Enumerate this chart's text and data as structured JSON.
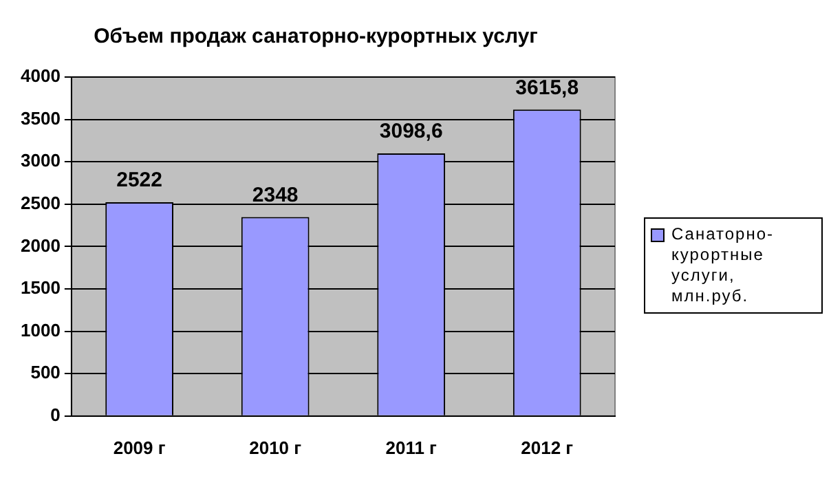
{
  "chart_data": {
    "type": "bar",
    "title": "Объем продаж санаторно-курортных услуг",
    "categories": [
      "2009 г",
      "2010 г",
      "2011 г",
      "2012 г"
    ],
    "series": [
      {
        "name": "Санаторно-курортные услуги, млн.руб.",
        "color": "#9999ff",
        "values": [
          2522,
          2348,
          3098.6,
          3615.8
        ],
        "value_labels": [
          "2522",
          "2348",
          "3098,6",
          "3615,8"
        ]
      }
    ],
    "ylim": [
      0,
      4000
    ],
    "yticks": [
      0,
      500,
      1000,
      1500,
      2000,
      2500,
      3000,
      3500,
      4000
    ],
    "grid": "y",
    "legend": "right"
  }
}
